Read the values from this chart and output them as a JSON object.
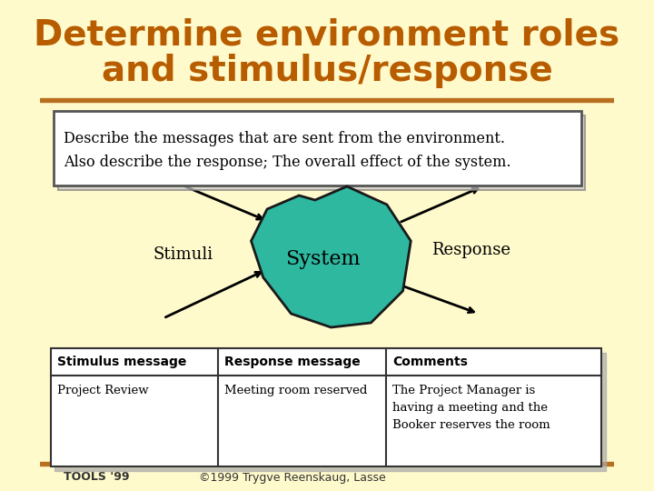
{
  "title_line1": "Determine environment roles",
  "title_line2": "and stimulus/response",
  "title_color": "#B85C00",
  "bg_color": "#FFFACC",
  "header_bar_color": "#B87020",
  "desc_text": "Describe the messages that are sent from the environment.\nAlso describe the response; The overall effect of the system.",
  "stimuli_label": "Stimuli",
  "system_label": "System",
  "response_label": "Response",
  "system_fill": "#2EB8A0",
  "system_outline": "#1A1A1A",
  "table_headers": [
    "Stimulus message",
    "Response message",
    "Comments"
  ],
  "table_row1": [
    "Project Review",
    "Meeting room reserved",
    "The Project Manager is\nhaving a meeting and the\nBooker reserves the room"
  ],
  "footer_left": "TOOLS '99",
  "footer_right": "©1999 Trygve Reenskaug, Lasse",
  "footer_color": "#333333"
}
